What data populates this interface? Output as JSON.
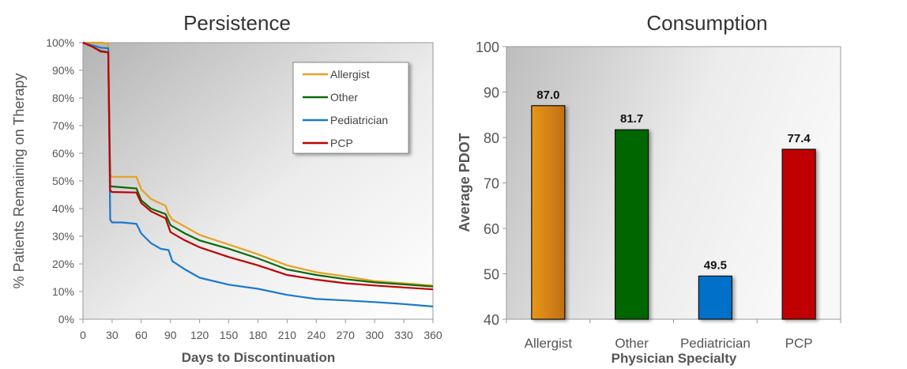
{
  "chart_data": [
    {
      "type": "line",
      "title": "Persistence",
      "xlabel": "Days to Discontinuation",
      "ylabel": "% Patients Remaining on Therapy",
      "xlim": [
        0,
        360
      ],
      "ylim": [
        0,
        100
      ],
      "xticks": [
        0,
        30,
        60,
        90,
        120,
        150,
        180,
        210,
        240,
        270,
        300,
        330,
        360
      ],
      "yticks": [
        "0%",
        "10%",
        "20%",
        "30%",
        "40%",
        "50%",
        "60%",
        "70%",
        "80%",
        "90%",
        "100%"
      ],
      "grid": false,
      "legend": "top-right",
      "series": [
        {
          "name": "Allergist",
          "color": "#E8A020",
          "points": [
            [
              0,
              100
            ],
            [
              20,
              100
            ],
            [
              26,
              99.5
            ],
            [
              28,
              52
            ],
            [
              30,
              51.5
            ],
            [
              55,
              51.5
            ],
            [
              60,
              47
            ],
            [
              70,
              43.5
            ],
            [
              85,
              41
            ],
            [
              88,
              38
            ],
            [
              92,
              36
            ],
            [
              105,
              33.5
            ],
            [
              120,
              30.5
            ],
            [
              150,
              27
            ],
            [
              180,
              23.5
            ],
            [
              210,
              19.5
            ],
            [
              240,
              17
            ],
            [
              270,
              15.5
            ],
            [
              300,
              13.8
            ],
            [
              330,
              13
            ],
            [
              360,
              12.2
            ]
          ]
        },
        {
          "name": "Other",
          "color": "#0A6A0A",
          "points": [
            [
              0,
              100
            ],
            [
              10,
              98.5
            ],
            [
              18,
              97
            ],
            [
              26,
              96.5
            ],
            [
              28,
              48
            ],
            [
              30,
              48
            ],
            [
              55,
              47.3
            ],
            [
              60,
              43
            ],
            [
              70,
              40
            ],
            [
              85,
              38
            ],
            [
              90,
              34
            ],
            [
              105,
              31
            ],
            [
              120,
              28.5
            ],
            [
              150,
              25.5
            ],
            [
              180,
              22
            ],
            [
              210,
              18
            ],
            [
              240,
              16
            ],
            [
              270,
              14.5
            ],
            [
              300,
              13.3
            ],
            [
              330,
              12.6
            ],
            [
              360,
              11.8
            ]
          ]
        },
        {
          "name": "Pediatrician",
          "color": "#1A78CC",
          "points": [
            [
              0,
              100
            ],
            [
              10,
              99
            ],
            [
              18,
              98.2
            ],
            [
              26,
              98
            ],
            [
              28,
              36
            ],
            [
              30,
              35
            ],
            [
              40,
              35
            ],
            [
              55,
              34.5
            ],
            [
              60,
              31
            ],
            [
              70,
              27.5
            ],
            [
              80,
              25.5
            ],
            [
              88,
              25
            ],
            [
              92,
              21
            ],
            [
              105,
              18
            ],
            [
              120,
              15
            ],
            [
              150,
              12.5
            ],
            [
              180,
              11
            ],
            [
              210,
              8.8
            ],
            [
              240,
              7.3
            ],
            [
              270,
              6.8
            ],
            [
              300,
              6.2
            ],
            [
              330,
              5.5
            ],
            [
              360,
              4.6
            ]
          ]
        },
        {
          "name": "PCP",
          "color": "#C00000",
          "points": [
            [
              0,
              100
            ],
            [
              10,
              98.5
            ],
            [
              18,
              96.8
            ],
            [
              26,
              96.5
            ],
            [
              28,
              46.5
            ],
            [
              30,
              46
            ],
            [
              55,
              45.8
            ],
            [
              60,
              42
            ],
            [
              70,
              39
            ],
            [
              85,
              36.5
            ],
            [
              90,
              31.5
            ],
            [
              105,
              28.5
            ],
            [
              120,
              26
            ],
            [
              150,
              22.5
            ],
            [
              180,
              19.5
            ],
            [
              210,
              16
            ],
            [
              240,
              14.3
            ],
            [
              270,
              13
            ],
            [
              300,
              12.2
            ],
            [
              330,
              11.5
            ],
            [
              360,
              10.8
            ]
          ]
        }
      ]
    },
    {
      "type": "bar",
      "title": "Consumption",
      "xlabel": "Physician Specialty",
      "ylabel": "Average PDOT",
      "ylim": [
        40,
        100
      ],
      "yticks": [
        "40",
        "50",
        "60",
        "70",
        "80",
        "90",
        "100"
      ],
      "grid": false,
      "categories": [
        "Allergist",
        "Other",
        "Pediatrician",
        "PCP"
      ],
      "values": [
        87.0,
        81.7,
        49.5,
        77.4
      ],
      "data_labels": [
        "87.0",
        "81.7",
        "49.5",
        "77.4"
      ],
      "colors": [
        "#E0901A",
        "#006600",
        "#0070C8",
        "#C00000"
      ]
    }
  ]
}
